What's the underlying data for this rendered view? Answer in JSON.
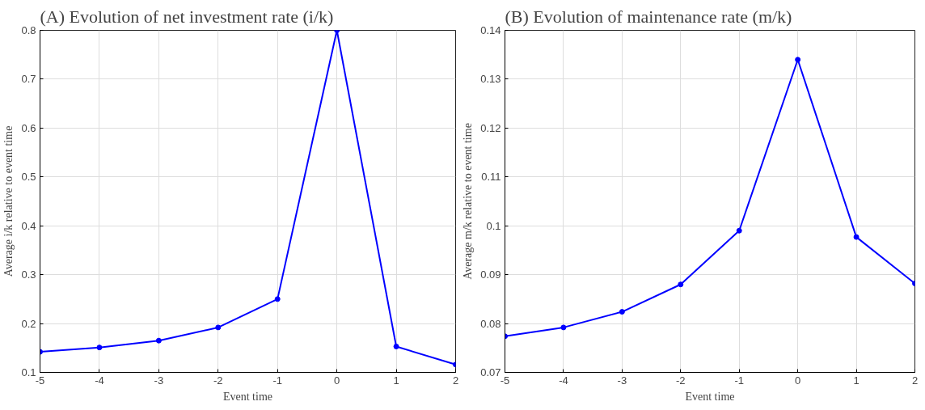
{
  "chart_data": [
    {
      "type": "line",
      "title": "(A) Evolution of net investment rate (i/k)",
      "xlabel": "Event time",
      "ylabel": "Average i/k relative to event time",
      "x": [
        -5,
        -4,
        -3,
        -2,
        -1,
        0,
        1,
        2
      ],
      "series": [
        {
          "color": "#0000ff",
          "values": [
            0.142,
            0.151,
            0.165,
            0.192,
            0.25,
            0.8,
            0.153,
            0.116
          ]
        }
      ],
      "xlim": [
        -5,
        2
      ],
      "xticks": [
        -5,
        -4,
        -3,
        -2,
        -1,
        0,
        1,
        2
      ],
      "ylim": [
        0.1,
        0.8
      ],
      "yticks": [
        0.1,
        0.2,
        0.3,
        0.4,
        0.5,
        0.6,
        0.7,
        0.8
      ],
      "grid": true,
      "marker": "circle",
      "line_style": "solid"
    },
    {
      "type": "line",
      "title": "(B) Evolution of maintenance rate (m/k)",
      "xlabel": "Event time",
      "ylabel": "Average m/k relative to event time",
      "x": [
        -5,
        -4,
        -3,
        -2,
        -1,
        0,
        1,
        2
      ],
      "series": [
        {
          "color": "#0000ff",
          "values": [
            0.0774,
            0.0792,
            0.0824,
            0.088,
            0.099,
            0.134,
            0.0977,
            0.0882
          ]
        }
      ],
      "xlim": [
        -5,
        2
      ],
      "xticks": [
        -5,
        -4,
        -3,
        -2,
        -1,
        0,
        1,
        2
      ],
      "ylim": [
        0.07,
        0.14
      ],
      "yticks": [
        0.07,
        0.08,
        0.09,
        0.1,
        0.11,
        0.12,
        0.13,
        0.14
      ],
      "grid": true,
      "marker": "circle",
      "line_style": "solid"
    }
  ]
}
